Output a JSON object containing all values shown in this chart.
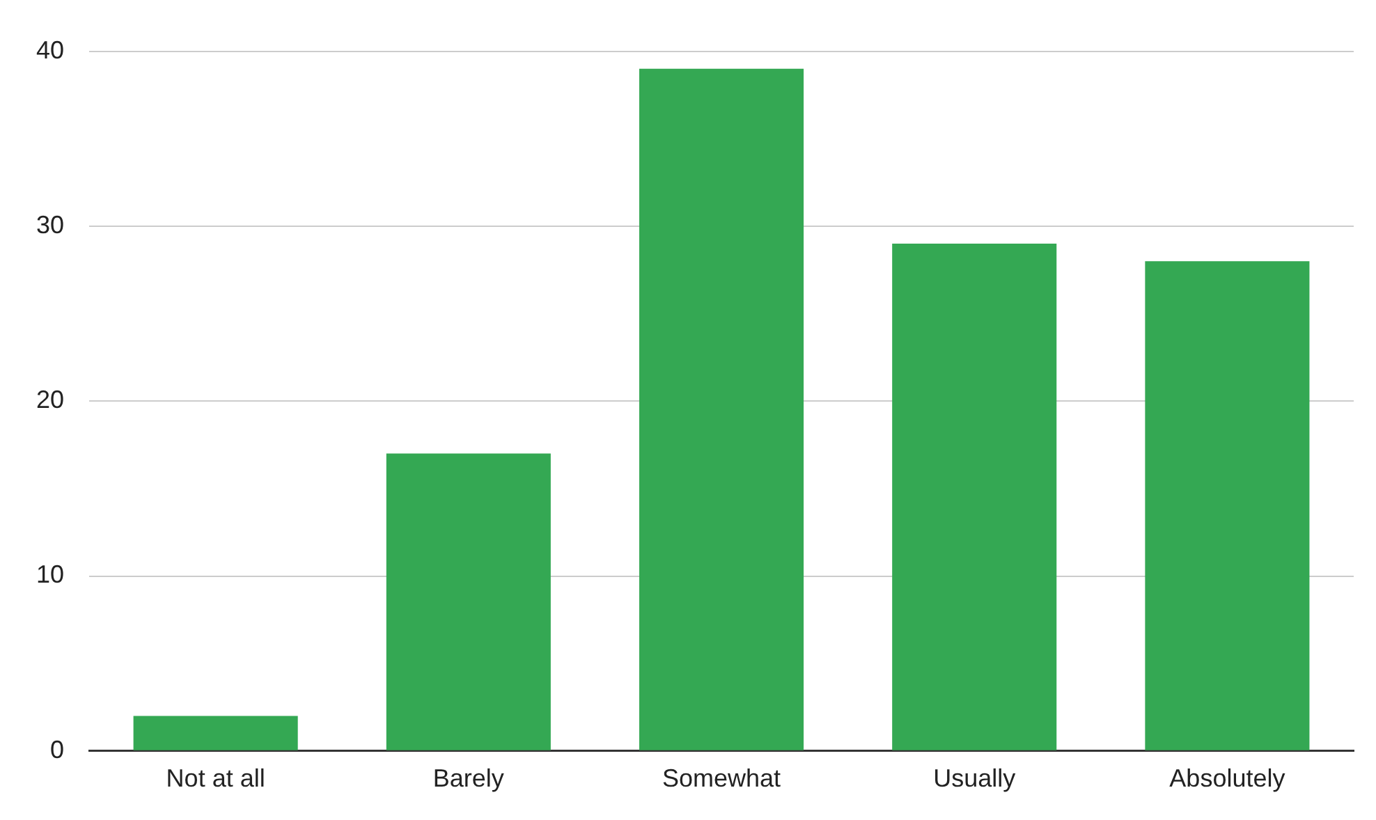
{
  "chart_data": {
    "type": "bar",
    "categories": [
      "Not at all",
      "Barely",
      "Somewhat",
      "Usually",
      "Absolutely"
    ],
    "values": [
      2,
      17,
      39,
      29,
      28
    ],
    "color": "#34a853",
    "ylim": [
      0,
      40
    ],
    "yticks": [
      0,
      10,
      20,
      30,
      40
    ],
    "grid": "y",
    "legend": false
  }
}
